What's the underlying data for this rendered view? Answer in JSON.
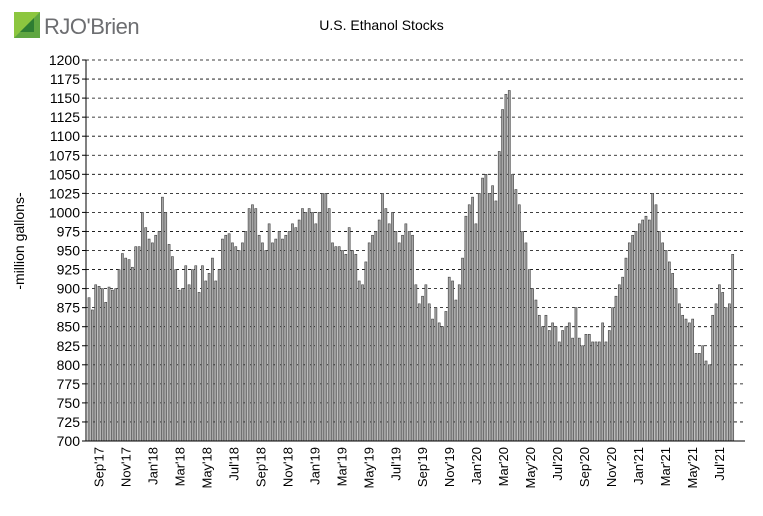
{
  "logo": {
    "name": "RJO'Brien",
    "mark_colors": [
      "#6ab04c",
      "#2e7d32"
    ]
  },
  "chart_data": {
    "type": "bar",
    "title": "U.S. Ethanol Stocks",
    "ylabel": "-million gallons-",
    "xlabel": "",
    "ylim": [
      700,
      1200
    ],
    "yticks": [
      700,
      725,
      750,
      775,
      800,
      825,
      850,
      875,
      900,
      925,
      950,
      975,
      1000,
      1025,
      1050,
      1075,
      1100,
      1125,
      1150,
      1175,
      1200
    ],
    "grid": "horizontal-dashed",
    "bar_color": "#a6a6a6",
    "bar_edge_color": "#404040",
    "x_tick_labels": [
      "Sep'17",
      "Nov'17",
      "Jan'18",
      "Mar'18",
      "May'18",
      "Jul'18",
      "Sep'18",
      "Nov'18",
      "Jan'19",
      "Mar'19",
      "May'19",
      "Jul'19",
      "Sep'19",
      "Nov'19",
      "Jan'20",
      "Mar'20",
      "May'20",
      "Jul'20",
      "Sep'20",
      "Nov'20",
      "Jan'21",
      "Mar'21",
      "May'21",
      "Jul'21"
    ],
    "bars_per_tick": 8.67,
    "values": [
      888,
      872,
      905,
      903,
      900,
      882,
      902,
      898,
      900,
      925,
      946,
      940,
      938,
      928,
      955,
      955,
      1000,
      980,
      965,
      960,
      970,
      975,
      1020,
      1000,
      958,
      942,
      925,
      898,
      900,
      930,
      905,
      925,
      930,
      895,
      930,
      910,
      920,
      940,
      910,
      925,
      965,
      970,
      972,
      960,
      955,
      950,
      960,
      975,
      1005,
      1010,
      1005,
      970,
      960,
      950,
      985,
      960,
      965,
      975,
      965,
      970,
      975,
      985,
      980,
      990,
      1005,
      1000,
      1005,
      1000,
      985,
      1000,
      1025,
      1025,
      1005,
      960,
      955,
      955,
      950,
      945,
      980,
      950,
      945,
      910,
      905,
      935,
      960,
      970,
      975,
      990,
      1025,
      1005,
      985,
      1000,
      975,
      960,
      970,
      985,
      975,
      970,
      905,
      880,
      890,
      905,
      880,
      860,
      875,
      855,
      850,
      870,
      915,
      910,
      885,
      905,
      940,
      995,
      1010,
      1020,
      985,
      1025,
      1045,
      1050,
      1025,
      1035,
      1015,
      1080,
      1135,
      1155,
      1160,
      1050,
      1030,
      1010,
      975,
      960,
      925,
      900,
      885,
      865,
      850,
      865,
      845,
      855,
      850,
      830,
      845,
      850,
      855,
      835,
      875,
      835,
      825,
      840,
      840,
      830,
      830,
      830,
      855,
      830,
      845,
      875,
      890,
      905,
      915,
      940,
      960,
      970,
      975,
      985,
      990,
      995,
      990,
      1025,
      1010,
      975,
      960,
      950,
      935,
      920,
      900,
      880,
      865,
      860,
      855,
      860,
      815,
      815,
      825,
      805,
      800,
      865,
      880,
      905,
      895,
      875,
      880,
      945
    ]
  }
}
